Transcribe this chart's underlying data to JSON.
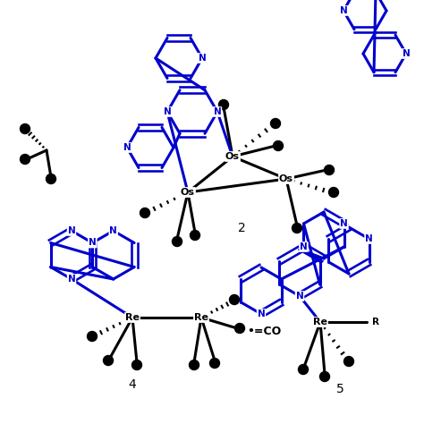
{
  "bg_color": "#ffffff",
  "blue": "#0000cc",
  "black": "#000000",
  "label2": "2",
  "label4": "4",
  "label5": "5",
  "co_label": "=CO"
}
